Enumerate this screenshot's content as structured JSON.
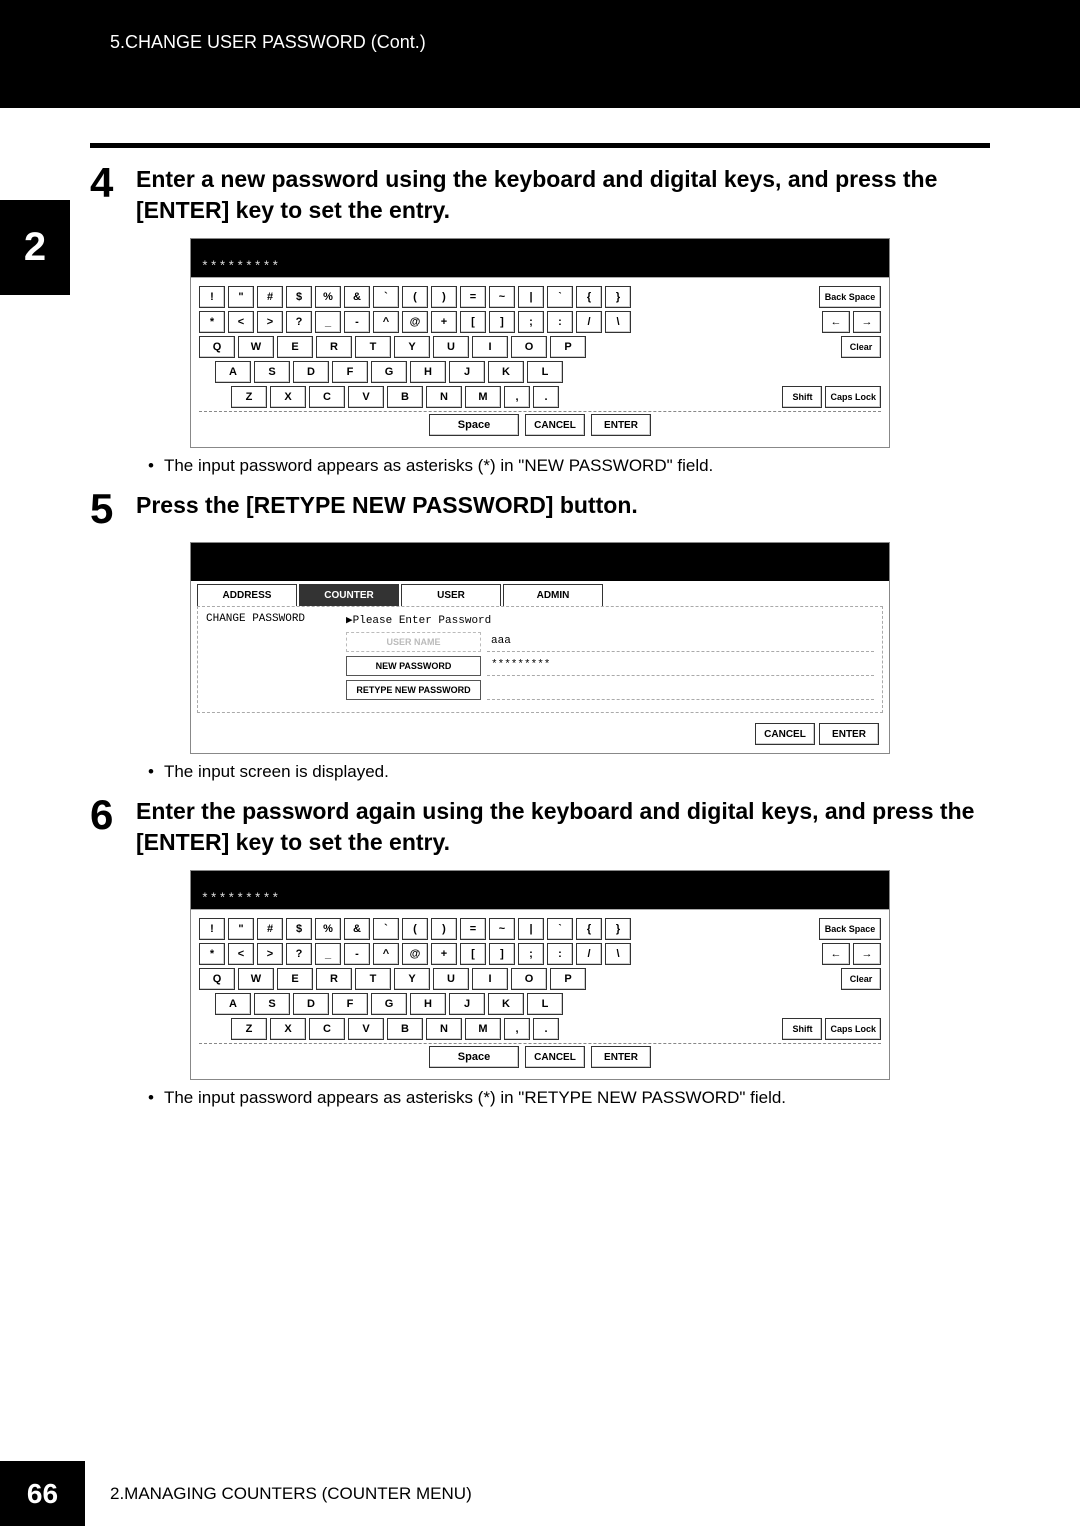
{
  "breadcrumb": "5.CHANGE USER PASSWORD (Cont.)",
  "side_tab": "2",
  "page_number": "66",
  "footer_text": "2.MANAGING COUNTERS (COUNTER MENU)",
  "steps": {
    "s4": {
      "num": "4",
      "text": "Enter a new password using the keyboard and digital keys, and press the [ENTER] key to set the entry."
    },
    "s5": {
      "num": "5",
      "text": "Press the [RETYPE NEW PASSWORD] button."
    },
    "s6": {
      "num": "6",
      "text": "Enter the password again using the keyboard and digital keys, and press the [ENTER] key to set the entry."
    }
  },
  "bullets": {
    "b4": "The input password appears as asterisks (*) in \"NEW PASSWORD\" field.",
    "b5": "The input screen is displayed.",
    "b6": "The input password appears as asterisks (*) in \"RETYPE NEW PASSWORD\" field."
  },
  "keyboard": {
    "asterisks": "*********",
    "row1": [
      "!",
      "\"",
      "#",
      "$",
      "%",
      "&",
      "`",
      "(",
      ")",
      "=",
      "~",
      "|",
      "ˋ",
      "{",
      "}"
    ],
    "row2": [
      "*",
      "<",
      ">",
      "?",
      "_",
      "-",
      "^",
      "@",
      "+",
      "[",
      "]",
      ";",
      ":",
      "/",
      "\\"
    ],
    "row3": [
      "Q",
      "W",
      "E",
      "R",
      "T",
      "Y",
      "U",
      "I",
      "O",
      "P"
    ],
    "row4": [
      "A",
      "S",
      "D",
      "F",
      "G",
      "H",
      "J",
      "K",
      "L"
    ],
    "row5": [
      "Z",
      "X",
      "C",
      "V",
      "B",
      "N",
      "M",
      ",",
      "."
    ],
    "backspace": "Back Space",
    "left_arrow": "←",
    "right_arrow": "→",
    "clear": "Clear",
    "shift": "Shift",
    "capslock": "Caps Lock",
    "space": "Space",
    "cancel": "CANCEL",
    "enter": "ENTER"
  },
  "counter_screen": {
    "tabs": {
      "address": "ADDRESS",
      "counter": "COUNTER",
      "user": "USER",
      "admin": "ADMIN"
    },
    "section_title": "CHANGE PASSWORD",
    "hint": "▶Please Enter Password",
    "user_name_label": "USER NAME",
    "user_name_value": "aaa",
    "new_password_label": "NEW PASSWORD",
    "new_password_value": "*********",
    "retype_label": "RETYPE NEW PASSWORD",
    "retype_value": "",
    "cancel": "CANCEL",
    "enter": "ENTER"
  }
}
